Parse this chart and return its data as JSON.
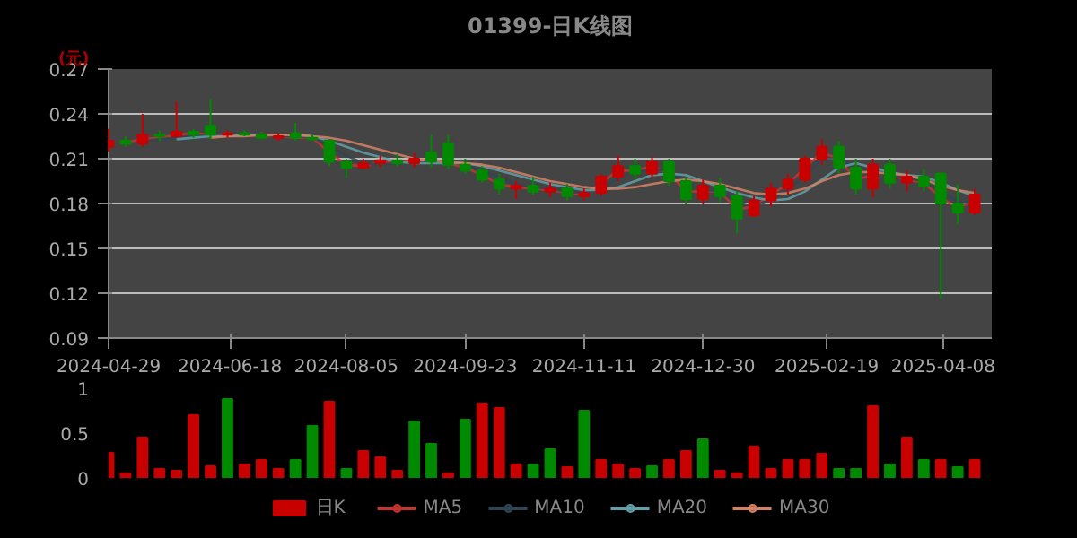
{
  "chart_data": [
    {
      "type": "candlestick",
      "title": "01399-日K线图",
      "ylabel": "(元)",
      "x": [
        "2024-04-29",
        "2024-05-06",
        "2024-05-13",
        "2024-05-20",
        "2024-05-27",
        "2024-06-03",
        "2024-06-10",
        "2024-06-17",
        "2024-06-24",
        "2024-07-01",
        "2024-07-08",
        "2024-07-15",
        "2024-07-22",
        "2024-07-29",
        "2024-08-05",
        "2024-08-12",
        "2024-08-19",
        "2024-08-26",
        "2024-09-02",
        "2024-09-09",
        "2024-09-16",
        "2024-09-23",
        "2024-09-30",
        "2024-10-07",
        "2024-10-14",
        "2024-10-21",
        "2024-10-28",
        "2024-11-04",
        "2024-11-11",
        "2024-11-18",
        "2024-11-25",
        "2024-12-02",
        "2024-12-09",
        "2024-12-16",
        "2024-12-23",
        "2024-12-30",
        "2025-01-06",
        "2025-01-13",
        "2025-01-20",
        "2025-01-27",
        "2025-02-03",
        "2025-02-10",
        "2025-02-17",
        "2025-02-24",
        "2025-03-03",
        "2025-03-10",
        "2025-03-17",
        "2025-03-24",
        "2025-03-31",
        "2025-04-07",
        "2025-04-14",
        "2025-04-21"
      ],
      "series": [
        {
          "name": "日K",
          "type": "candlestick",
          "color": "#c80000",
          "colors": [
            "#c80000",
            "#008a00",
            "#c80000",
            "#008a00",
            "#c80000",
            "#008a00",
            "#008a00",
            "#c80000",
            "#008a00",
            "#008a00",
            "#c80000",
            "#008a00",
            "#008a00",
            "#008a00",
            "#008a00",
            "#c80000",
            "#c80000",
            "#008a00",
            "#c80000",
            "#008a00",
            "#008a00",
            "#008a00",
            "#008a00",
            "#008a00",
            "#c80000",
            "#008a00",
            "#c80000",
            "#008a00",
            "#c80000",
            "#c80000",
            "#c80000",
            "#008a00",
            "#c80000",
            "#008a00",
            "#008a00",
            "#c80000",
            "#008a00",
            "#008a00",
            "#c80000",
            "#c80000",
            "#c80000",
            "#c80000",
            "#c80000",
            "#008a00",
            "#008a00",
            "#c80000",
            "#008a00",
            "#c80000",
            "#008a00",
            "#008a00",
            "#008a00",
            "#c80000"
          ],
          "ohlc": [
            [
              0.218,
              0.23,
              0.215,
              0.222
            ],
            [
              0.222,
              0.225,
              0.218,
              0.22
            ],
            [
              0.22,
              0.24,
              0.218,
              0.226
            ],
            [
              0.226,
              0.229,
              0.222,
              0.225
            ],
            [
              0.225,
              0.248,
              0.224,
              0.228
            ],
            [
              0.228,
              0.23,
              0.224,
              0.226
            ],
            [
              0.232,
              0.25,
              0.223,
              0.226
            ],
            [
              0.226,
              0.229,
              0.224,
              0.227
            ],
            [
              0.227,
              0.229,
              0.225,
              0.226
            ],
            [
              0.226,
              0.228,
              0.223,
              0.224
            ],
            [
              0.224,
              0.227,
              0.222,
              0.225
            ],
            [
              0.227,
              0.234,
              0.222,
              0.224
            ],
            [
              0.224,
              0.226,
              0.222,
              0.223
            ],
            [
              0.222,
              0.223,
              0.205,
              0.208
            ],
            [
              0.208,
              0.21,
              0.197,
              0.204
            ],
            [
              0.204,
              0.21,
              0.203,
              0.207
            ],
            [
              0.207,
              0.212,
              0.204,
              0.209
            ],
            [
              0.209,
              0.213,
              0.205,
              0.207
            ],
            [
              0.207,
              0.214,
              0.204,
              0.21
            ],
            [
              0.214,
              0.226,
              0.204,
              0.208
            ],
            [
              0.22,
              0.226,
              0.203,
              0.206
            ],
            [
              0.206,
              0.21,
              0.2,
              0.202
            ],
            [
              0.202,
              0.205,
              0.194,
              0.196
            ],
            [
              0.196,
              0.2,
              0.186,
              0.19
            ],
            [
              0.19,
              0.195,
              0.183,
              0.192
            ],
            [
              0.192,
              0.198,
              0.186,
              0.188
            ],
            [
              0.188,
              0.194,
              0.184,
              0.19
            ],
            [
              0.19,
              0.193,
              0.182,
              0.185
            ],
            [
              0.185,
              0.19,
              0.182,
              0.187
            ],
            [
              0.187,
              0.2,
              0.185,
              0.198
            ],
            [
              0.198,
              0.212,
              0.195,
              0.205
            ],
            [
              0.205,
              0.21,
              0.196,
              0.2
            ],
            [
              0.2,
              0.211,
              0.198,
              0.208
            ],
            [
              0.208,
              0.21,
              0.192,
              0.195
            ],
            [
              0.195,
              0.198,
              0.18,
              0.183
            ],
            [
              0.183,
              0.196,
              0.18,
              0.192
            ],
            [
              0.192,
              0.197,
              0.181,
              0.185
            ],
            [
              0.185,
              0.188,
              0.16,
              0.17
            ],
            [
              0.172,
              0.185,
              0.171,
              0.182
            ],
            [
              0.182,
              0.194,
              0.178,
              0.19
            ],
            [
              0.19,
              0.2,
              0.186,
              0.196
            ],
            [
              0.196,
              0.212,
              0.194,
              0.21
            ],
            [
              0.21,
              0.223,
              0.206,
              0.218
            ],
            [
              0.218,
              0.222,
              0.2,
              0.204
            ],
            [
              0.204,
              0.21,
              0.186,
              0.19
            ],
            [
              0.19,
              0.21,
              0.184,
              0.206
            ],
            [
              0.206,
              0.21,
              0.19,
              0.194
            ],
            [
              0.194,
              0.202,
              0.188,
              0.198
            ],
            [
              0.198,
              0.203,
              0.188,
              0.192
            ],
            [
              0.2,
              0.2,
              0.116,
              0.18
            ],
            [
              0.18,
              0.193,
              0.166,
              0.174
            ],
            [
              0.174,
              0.19,
              0.172,
              0.186
            ]
          ]
        },
        {
          "name": "MA5",
          "type": "line",
          "color": "#c23531",
          "values": [
            null,
            0.221,
            0.223,
            0.224,
            0.226,
            0.227,
            0.226,
            0.226,
            0.226,
            0.225,
            0.225,
            0.224,
            0.224,
            0.214,
            0.206,
            0.205,
            0.208,
            0.208,
            0.209,
            0.209,
            0.207,
            0.204,
            0.199,
            0.193,
            0.191,
            0.19,
            0.189,
            0.187,
            0.186,
            0.194,
            0.202,
            0.202,
            0.205,
            0.2,
            0.188,
            0.188,
            0.188,
            0.176,
            0.178,
            0.186,
            0.193,
            0.204,
            0.214,
            0.21,
            0.196,
            0.199,
            0.199,
            0.196,
            0.194,
            0.184,
            0.177,
            0.182
          ]
        },
        {
          "name": "MA10",
          "type": "line",
          "color": "#2f4554",
          "values": [
            null,
            null,
            0.222,
            0.223,
            0.224,
            0.225,
            0.226,
            0.226,
            0.226,
            0.226,
            0.225,
            0.225,
            0.224,
            0.219,
            0.212,
            0.207,
            0.206,
            0.207,
            0.208,
            0.209,
            0.208,
            0.206,
            0.202,
            0.197,
            0.193,
            0.191,
            0.19,
            0.188,
            0.187,
            0.19,
            0.197,
            0.201,
            0.203,
            0.202,
            0.194,
            0.189,
            0.188,
            0.181,
            0.178,
            0.183,
            0.189,
            0.199,
            0.209,
            0.211,
            0.203,
            0.199,
            0.199,
            0.197,
            0.195,
            0.188,
            0.181,
            0.181
          ]
        },
        {
          "name": "MA20",
          "type": "line",
          "color": "#61a0a8",
          "values": [
            null,
            null,
            null,
            null,
            0.223,
            0.224,
            0.225,
            0.225,
            0.226,
            0.226,
            0.226,
            0.226,
            0.225,
            0.222,
            0.218,
            0.214,
            0.211,
            0.208,
            0.207,
            0.207,
            0.207,
            0.207,
            0.205,
            0.202,
            0.199,
            0.196,
            0.193,
            0.191,
            0.189,
            0.189,
            0.191,
            0.195,
            0.199,
            0.2,
            0.199,
            0.195,
            0.191,
            0.187,
            0.184,
            0.182,
            0.183,
            0.188,
            0.196,
            0.204,
            0.207,
            0.204,
            0.201,
            0.199,
            0.198,
            0.194,
            0.189,
            0.185
          ]
        },
        {
          "name": "MA30",
          "type": "line",
          "color": "#d48265",
          "values": [
            null,
            null,
            null,
            null,
            null,
            null,
            0.224,
            0.225,
            0.225,
            0.226,
            0.226,
            0.226,
            0.225,
            0.224,
            0.222,
            0.219,
            0.216,
            0.213,
            0.21,
            0.209,
            0.208,
            0.207,
            0.206,
            0.204,
            0.201,
            0.198,
            0.195,
            0.193,
            0.191,
            0.19,
            0.19,
            0.191,
            0.193,
            0.195,
            0.196,
            0.195,
            0.193,
            0.19,
            0.187,
            0.186,
            0.187,
            0.19,
            0.195,
            0.199,
            0.201,
            0.201,
            0.2,
            0.199,
            0.196,
            0.192,
            0.189,
            0.187
          ]
        }
      ],
      "xlim": [
        "2024-04-29",
        "2025-04-28"
      ],
      "xticks": [
        {
          "value": "2024-04-29",
          "label": "2024-04-29"
        },
        {
          "value": "2024-06-18",
          "label": "2024-06-18"
        },
        {
          "value": "2024-08-05",
          "label": "2024-08-05"
        },
        {
          "value": "2024-09-23",
          "label": "2024-09-23"
        },
        {
          "value": "2024-11-11",
          "label": "2024-11-11"
        },
        {
          "value": "2024-12-30",
          "label": "2024-12-30"
        },
        {
          "value": "2025-02-19",
          "label": "2025-02-19"
        },
        {
          "value": "2025-04-08",
          "label": "2025-04-08"
        }
      ],
      "ylim": [
        0.09,
        0.27
      ],
      "yticks": [
        0.09,
        0.12,
        0.15,
        0.18,
        0.21,
        0.24,
        0.27
      ],
      "grid": "y",
      "legend": "bottom"
    },
    {
      "type": "bar",
      "x": [
        "2024-04-29",
        "2024-05-06",
        "2024-05-13",
        "2024-05-20",
        "2024-05-27",
        "2024-06-03",
        "2024-06-10",
        "2024-06-17",
        "2024-06-24",
        "2024-07-01",
        "2024-07-08",
        "2024-07-15",
        "2024-07-22",
        "2024-07-29",
        "2024-08-05",
        "2024-08-12",
        "2024-08-19",
        "2024-08-26",
        "2024-09-02",
        "2024-09-09",
        "2024-09-16",
        "2024-09-23",
        "2024-09-30",
        "2024-10-07",
        "2024-10-14",
        "2024-10-21",
        "2024-10-28",
        "2024-11-04",
        "2024-11-11",
        "2024-11-18",
        "2024-11-25",
        "2024-12-02",
        "2024-12-09",
        "2024-12-16",
        "2024-12-23",
        "2024-12-30",
        "2025-01-06",
        "2025-01-13",
        "2025-01-20",
        "2025-01-27",
        "2025-02-03",
        "2025-02-10",
        "2025-02-17",
        "2025-02-24",
        "2025-03-03",
        "2025-03-10",
        "2025-03-17",
        "2025-03-24",
        "2025-03-31",
        "2025-04-07",
        "2025-04-14",
        "2025-04-21"
      ],
      "values": [
        0.28,
        0.05,
        0.45,
        0.1,
        0.08,
        0.7,
        0.13,
        0.88,
        0.15,
        0.2,
        0.1,
        0.2,
        0.58,
        0.85,
        0.1,
        0.3,
        0.23,
        0.08,
        0.63,
        0.38,
        0.05,
        0.65,
        0.83,
        0.78,
        0.15,
        0.15,
        0.32,
        0.12,
        0.75,
        0.2,
        0.15,
        0.1,
        0.13,
        0.2,
        0.3,
        0.43,
        0.08,
        0.05,
        0.35,
        0.1,
        0.2,
        0.2,
        0.27,
        0.1,
        0.1,
        0.8,
        0.15,
        0.45,
        0.2,
        0.2,
        0.12,
        0.2
      ],
      "colors": [
        "#c80000",
        "#c80000",
        "#c80000",
        "#c80000",
        "#c80000",
        "#c80000",
        "#c80000",
        "#008a00",
        "#c80000",
        "#c80000",
        "#c80000",
        "#008a00",
        "#008a00",
        "#c80000",
        "#008a00",
        "#c80000",
        "#c80000",
        "#c80000",
        "#008a00",
        "#008a00",
        "#c80000",
        "#008a00",
        "#c80000",
        "#c80000",
        "#c80000",
        "#008a00",
        "#008a00",
        "#c80000",
        "#008a00",
        "#c80000",
        "#c80000",
        "#c80000",
        "#008a00",
        "#c80000",
        "#c80000",
        "#008a00",
        "#c80000",
        "#c80000",
        "#c80000",
        "#c80000",
        "#c80000",
        "#c80000",
        "#c80000",
        "#008a00",
        "#008a00",
        "#c80000",
        "#008a00",
        "#c80000",
        "#008a00",
        "#c80000",
        "#008a00",
        "#c80000"
      ],
      "ylim": [
        0,
        1
      ],
      "yticks": [
        0,
        0.5,
        1
      ],
      "tick_labels": "y",
      "grid": false
    }
  ]
}
